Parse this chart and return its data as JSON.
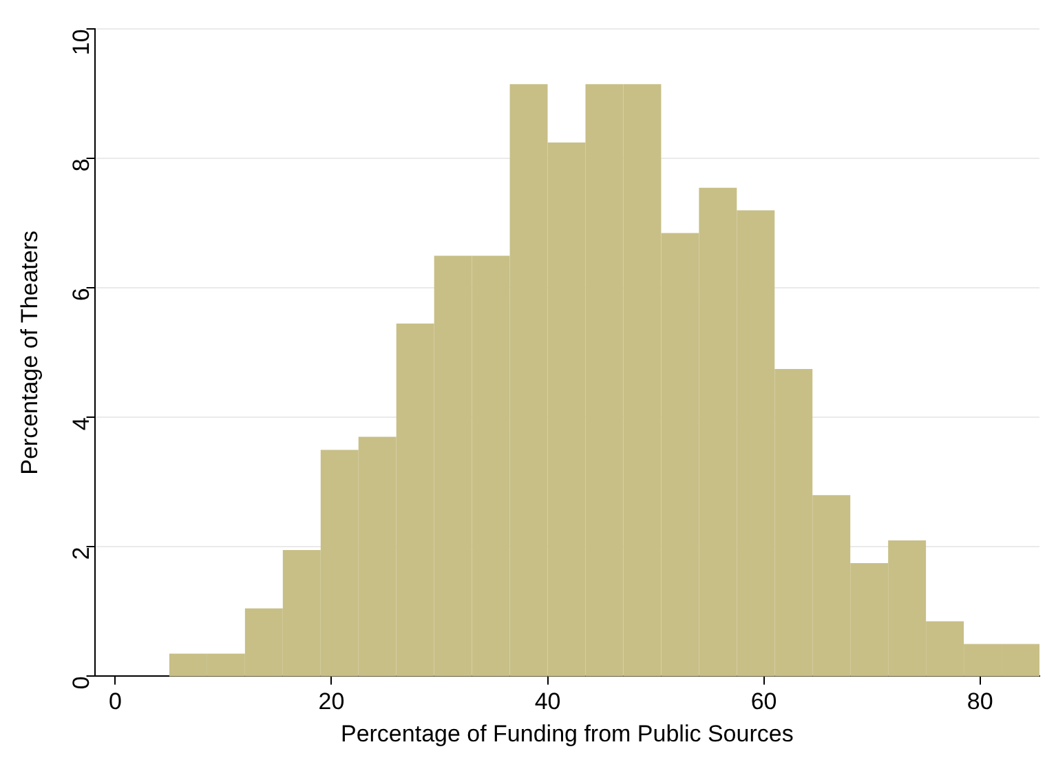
{
  "chart_data": {
    "type": "histogram",
    "xlabel": "Percentage of Funding from Public Sources",
    "ylabel": "Percentage of Theaters",
    "bins": [
      5,
      8.5,
      12,
      15.5,
      19,
      22.5,
      26,
      29.5,
      33,
      36.5,
      40,
      43.5,
      47,
      50.5,
      54,
      57.5,
      61,
      64.5,
      68,
      71.5,
      75,
      78.5,
      82,
      85.5
    ],
    "values": [
      0.35,
      0.35,
      1.05,
      1.95,
      3.5,
      3.7,
      5.45,
      6.5,
      6.5,
      9.15,
      8.25,
      9.15,
      9.15,
      6.85,
      7.55,
      7.2,
      4.75,
      2.8,
      1.75,
      2.1,
      0.85,
      0.5,
      0.5
    ],
    "color": "#c8bf87",
    "xlim": [
      -1.9,
      85.5
    ],
    "xticks": [
      0,
      20,
      40,
      60,
      80
    ],
    "ylim": [
      0,
      10
    ],
    "yticks": [
      0,
      2,
      4,
      6,
      8,
      10
    ],
    "grid": "y",
    "legend": false
  }
}
